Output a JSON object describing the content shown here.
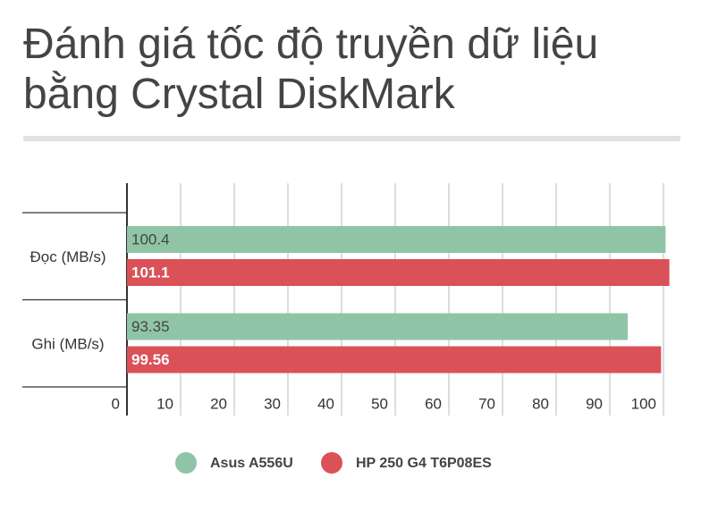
{
  "chart_data": {
    "type": "hbar",
    "title": "Đánh giá tốc độ truyền dữ liệu bằng Crystal DiskMark",
    "categories": [
      "Đọc (MB/s)",
      "Ghi (MB/s)"
    ],
    "series": [
      {
        "name": "Asus A556U",
        "color": "#8fc5a6",
        "values": [
          100.4,
          93.35
        ]
      },
      {
        "name": "HP 250 G4 T6P08ES",
        "color": "#da5158",
        "values": [
          101.1,
          99.56
        ]
      }
    ],
    "xlim": [
      0,
      100
    ],
    "xticks": [
      0,
      10,
      20,
      30,
      40,
      50,
      60,
      70,
      80,
      90,
      100
    ],
    "grid": true
  }
}
